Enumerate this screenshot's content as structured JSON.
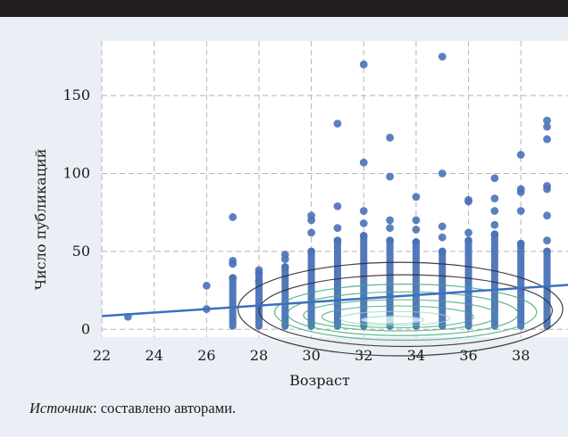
{
  "source_note": {
    "label": "Источник",
    "text": ": составлено авторами."
  },
  "chart_data": {
    "type": "scatter",
    "xlabel": "Возраст",
    "ylabel": "Число публикаций",
    "xlim": [
      22,
      39.8
    ],
    "ylim": [
      -5,
      185
    ],
    "xticks": [
      22,
      24,
      26,
      28,
      30,
      32,
      34,
      36,
      38
    ],
    "yticks": [
      0,
      50,
      100,
      150
    ],
    "grid": true,
    "grid_style": "dashed",
    "colors": {
      "points": "#4a72b8",
      "trend": "#3c6fc3",
      "contour_outer": "#2b2b2b",
      "contour_inner": "#3aaa78",
      "contour_core": "#ffffff"
    },
    "points": [
      [
        23,
        8
      ],
      [
        26,
        13
      ],
      [
        26,
        28
      ],
      [
        27,
        72
      ],
      [
        27,
        44
      ],
      [
        27,
        42
      ],
      [
        27,
        33
      ],
      [
        28,
        38
      ],
      [
        28,
        36
      ],
      [
        28,
        31
      ],
      [
        29,
        48
      ],
      [
        29,
        45
      ],
      [
        29,
        40
      ],
      [
        30,
        73
      ],
      [
        30,
        70
      ],
      [
        30,
        62
      ],
      [
        30,
        50
      ],
      [
        31,
        132
      ],
      [
        31,
        79
      ],
      [
        31,
        65
      ],
      [
        31,
        57
      ],
      [
        32,
        170
      ],
      [
        32,
        107
      ],
      [
        32,
        76
      ],
      [
        32,
        68
      ],
      [
        32,
        60
      ],
      [
        33,
        123
      ],
      [
        33,
        98
      ],
      [
        33,
        70
      ],
      [
        33,
        65
      ],
      [
        33,
        57
      ],
      [
        34,
        85
      ],
      [
        34,
        70
      ],
      [
        34,
        64
      ],
      [
        34,
        56
      ],
      [
        35,
        175
      ],
      [
        35,
        100
      ],
      [
        35,
        66
      ],
      [
        35,
        59
      ],
      [
        35,
        50
      ],
      [
        36,
        83
      ],
      [
        36,
        82
      ],
      [
        36,
        62
      ],
      [
        36,
        57
      ],
      [
        37,
        97
      ],
      [
        37,
        84
      ],
      [
        37,
        76
      ],
      [
        37,
        67
      ],
      [
        37,
        61
      ],
      [
        38,
        112
      ],
      [
        38,
        90
      ],
      [
        38,
        88
      ],
      [
        38,
        76
      ],
      [
        38,
        55
      ],
      [
        39,
        134
      ],
      [
        39,
        130
      ],
      [
        39,
        122
      ],
      [
        39,
        92
      ],
      [
        39,
        90
      ],
      [
        39,
        73
      ],
      [
        39,
        57
      ],
      [
        39,
        50
      ]
    ],
    "column_bands": [
      {
        "x": 27,
        "from": 2,
        "to": 33
      },
      {
        "x": 28,
        "from": 2,
        "to": 36
      },
      {
        "x": 29,
        "from": 2,
        "to": 40
      },
      {
        "x": 30,
        "from": 2,
        "to": 50
      },
      {
        "x": 31,
        "from": 2,
        "to": 57
      },
      {
        "x": 32,
        "from": 2,
        "to": 60
      },
      {
        "x": 33,
        "from": 2,
        "to": 57
      },
      {
        "x": 34,
        "from": 2,
        "to": 56
      },
      {
        "x": 35,
        "from": 2,
        "to": 50
      },
      {
        "x": 36,
        "from": 2,
        "to": 57
      },
      {
        "x": 37,
        "from": 2,
        "to": 61
      },
      {
        "x": 38,
        "from": 2,
        "to": 55
      },
      {
        "x": 39,
        "from": 2,
        "to": 50
      }
    ],
    "trend_line": {
      "x": [
        22,
        39.8
      ],
      "y": [
        8.5,
        28.5
      ]
    },
    "density_contours": [
      {
        "cx": 33.4,
        "cy": 13,
        "rx": 6.2,
        "ry": 30
      },
      {
        "cx": 33.6,
        "cy": 12,
        "rx": 5.6,
        "ry": 23
      },
      {
        "cx": 33.6,
        "cy": 11,
        "rx": 5.0,
        "ry": 18
      },
      {
        "cx": 33.5,
        "cy": 10,
        "rx": 4.4,
        "ry": 14
      },
      {
        "cx": 33.4,
        "cy": 9,
        "rx": 3.7,
        "ry": 10
      },
      {
        "cx": 33.3,
        "cy": 8,
        "rx": 2.9,
        "ry": 7
      },
      {
        "cx": 33.2,
        "cy": 7,
        "rx": 2.1,
        "ry": 4.5
      },
      {
        "cx": 33.1,
        "cy": 6,
        "rx": 1.2,
        "ry": 2.5
      }
    ]
  }
}
